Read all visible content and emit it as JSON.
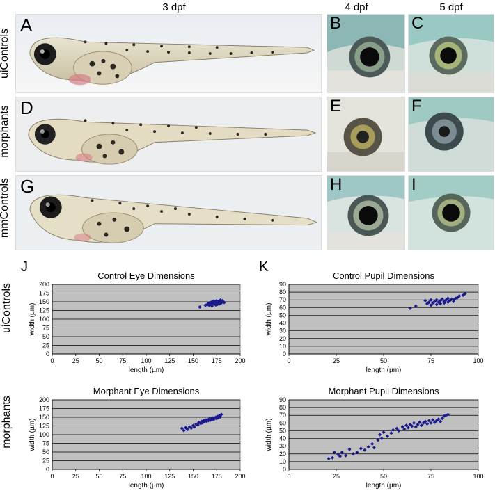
{
  "headers": {
    "dpf3": "3 dpf",
    "dpf4": "4 dpf",
    "dpf5": "5 dpf"
  },
  "row_labels": {
    "top": "uiControls",
    "mid": "morphants",
    "bot": "mmControls",
    "chart_top": "uiControls",
    "chart_bot": "morphants"
  },
  "panels": {
    "A": "A",
    "B": "B",
    "C": "C",
    "D": "D",
    "E": "E",
    "F": "F",
    "G": "G",
    "H": "H",
    "I": "I",
    "J": "J",
    "K": "K"
  },
  "chart_data": [
    {
      "type": "scatter",
      "title": "Control Eye Dimensions",
      "xlabel": "length (µm)",
      "ylabel": "width (µm)",
      "xlim": [
        0,
        200
      ],
      "ylim": [
        0,
        200
      ],
      "xticks": [
        0,
        25,
        50,
        75,
        100,
        125,
        150,
        175,
        200
      ],
      "yticks": [
        0,
        25,
        50,
        75,
        100,
        125,
        150,
        175,
        200
      ],
      "grid": true,
      "color": "#1a1a8c",
      "points": [
        [
          157,
          135
        ],
        [
          163,
          140
        ],
        [
          165,
          142
        ],
        [
          166,
          145
        ],
        [
          167,
          140
        ],
        [
          168,
          148
        ],
        [
          169,
          143
        ],
        [
          170,
          150
        ],
        [
          170,
          138
        ],
        [
          171,
          146
        ],
        [
          172,
          144
        ],
        [
          172,
          152
        ],
        [
          173,
          147
        ],
        [
          174,
          141
        ],
        [
          174,
          149
        ],
        [
          175,
          145
        ],
        [
          175,
          153
        ],
        [
          176,
          148
        ],
        [
          176,
          143
        ],
        [
          177,
          150
        ],
        [
          177,
          146
        ],
        [
          178,
          152
        ],
        [
          178,
          144
        ],
        [
          179,
          149
        ],
        [
          179,
          155
        ],
        [
          180,
          147
        ],
        [
          180,
          151
        ],
        [
          181,
          153
        ],
        [
          182,
          150
        ],
        [
          183,
          148
        ]
      ]
    },
    {
      "type": "scatter",
      "title": "Control Pupil Dimensions",
      "xlabel": "length (µm)",
      "ylabel": "width (µm)",
      "xlim": [
        0,
        100
      ],
      "ylim": [
        0,
        90
      ],
      "xticks": [
        0,
        25,
        50,
        75,
        100
      ],
      "yticks": [
        0,
        10,
        20,
        30,
        40,
        50,
        60,
        70,
        80,
        90
      ],
      "grid": true,
      "color": "#1a1a8c",
      "points": [
        [
          64,
          59
        ],
        [
          67,
          62
        ],
        [
          72,
          69
        ],
        [
          73,
          65
        ],
        [
          74,
          67
        ],
        [
          75,
          63
        ],
        [
          75,
          70
        ],
        [
          76,
          66
        ],
        [
          77,
          68
        ],
        [
          78,
          64
        ],
        [
          78,
          70
        ],
        [
          79,
          67
        ],
        [
          80,
          69
        ],
        [
          80,
          65
        ],
        [
          81,
          71
        ],
        [
          82,
          68
        ],
        [
          82,
          66
        ],
        [
          83,
          70
        ],
        [
          84,
          67
        ],
        [
          84,
          72
        ],
        [
          85,
          69
        ],
        [
          86,
          71
        ],
        [
          87,
          68
        ],
        [
          87,
          70
        ],
        [
          88,
          72
        ],
        [
          89,
          73
        ],
        [
          90,
          75
        ],
        [
          92,
          76
        ],
        [
          93,
          78
        ]
      ]
    },
    {
      "type": "scatter",
      "title": "Morphant Eye Dimensions",
      "xlabel": "length (µm)",
      "ylabel": "width (µm)",
      "xlim": [
        0,
        200
      ],
      "ylim": [
        0,
        200
      ],
      "xticks": [
        0,
        25,
        50,
        75,
        100,
        125,
        150,
        175,
        200
      ],
      "yticks": [
        0,
        25,
        50,
        75,
        100,
        125,
        150,
        175,
        200
      ],
      "grid": true,
      "color": "#1a1a8c",
      "points": [
        [
          138,
          118
        ],
        [
          140,
          112
        ],
        [
          142,
          120
        ],
        [
          144,
          115
        ],
        [
          146,
          122
        ],
        [
          148,
          119
        ],
        [
          150,
          126
        ],
        [
          151,
          122
        ],
        [
          153,
          130
        ],
        [
          155,
          128
        ],
        [
          156,
          135
        ],
        [
          158,
          132
        ],
        [
          159,
          138
        ],
        [
          160,
          134
        ],
        [
          161,
          140
        ],
        [
          162,
          137
        ],
        [
          163,
          142
        ],
        [
          164,
          139
        ],
        [
          165,
          143
        ],
        [
          166,
          140
        ],
        [
          167,
          145
        ],
        [
          168,
          141
        ],
        [
          169,
          146
        ],
        [
          170,
          143
        ],
        [
          171,
          148
        ],
        [
          172,
          144
        ],
        [
          173,
          147
        ],
        [
          174,
          150
        ],
        [
          175,
          146
        ],
        [
          176,
          152
        ],
        [
          177,
          149
        ],
        [
          178,
          155
        ],
        [
          179,
          151
        ],
        [
          180,
          158
        ]
      ]
    },
    {
      "type": "scatter",
      "title": "Morphant Pupil Dimensions",
      "xlabel": "length (µm)",
      "ylabel": "width (µm)",
      "xlim": [
        0,
        100
      ],
      "ylim": [
        0,
        90
      ],
      "xticks": [
        0,
        25,
        50,
        75,
        100
      ],
      "yticks": [
        0,
        10,
        20,
        30,
        40,
        50,
        60,
        70,
        80,
        90
      ],
      "grid": true,
      "color": "#1a1a8c",
      "points": [
        [
          21,
          14
        ],
        [
          23,
          15
        ],
        [
          24,
          22
        ],
        [
          26,
          19
        ],
        [
          27,
          17
        ],
        [
          28,
          22
        ],
        [
          30,
          18
        ],
        [
          32,
          26
        ],
        [
          34,
          20
        ],
        [
          36,
          22
        ],
        [
          38,
          27
        ],
        [
          40,
          25
        ],
        [
          42,
          29
        ],
        [
          44,
          33
        ],
        [
          45,
          28
        ],
        [
          47,
          38
        ],
        [
          48,
          45
        ],
        [
          49,
          40
        ],
        [
          50,
          48
        ],
        [
          52,
          43
        ],
        [
          54,
          47
        ],
        [
          55,
          51
        ],
        [
          57,
          53
        ],
        [
          58,
          50
        ],
        [
          60,
          55
        ],
        [
          61,
          52
        ],
        [
          62,
          57
        ],
        [
          63,
          54
        ],
        [
          64,
          58
        ],
        [
          65,
          56
        ],
        [
          66,
          60
        ],
        [
          67,
          55
        ],
        [
          68,
          58
        ],
        [
          69,
          61
        ],
        [
          70,
          57
        ],
        [
          71,
          60
        ],
        [
          72,
          62
        ],
        [
          73,
          59
        ],
        [
          74,
          63
        ],
        [
          75,
          60
        ],
        [
          76,
          64
        ],
        [
          77,
          61
        ],
        [
          78,
          63
        ],
        [
          79,
          65
        ],
        [
          80,
          62
        ],
        [
          81,
          66
        ],
        [
          82,
          69
        ],
        [
          83,
          70
        ],
        [
          84,
          71
        ]
      ]
    }
  ]
}
